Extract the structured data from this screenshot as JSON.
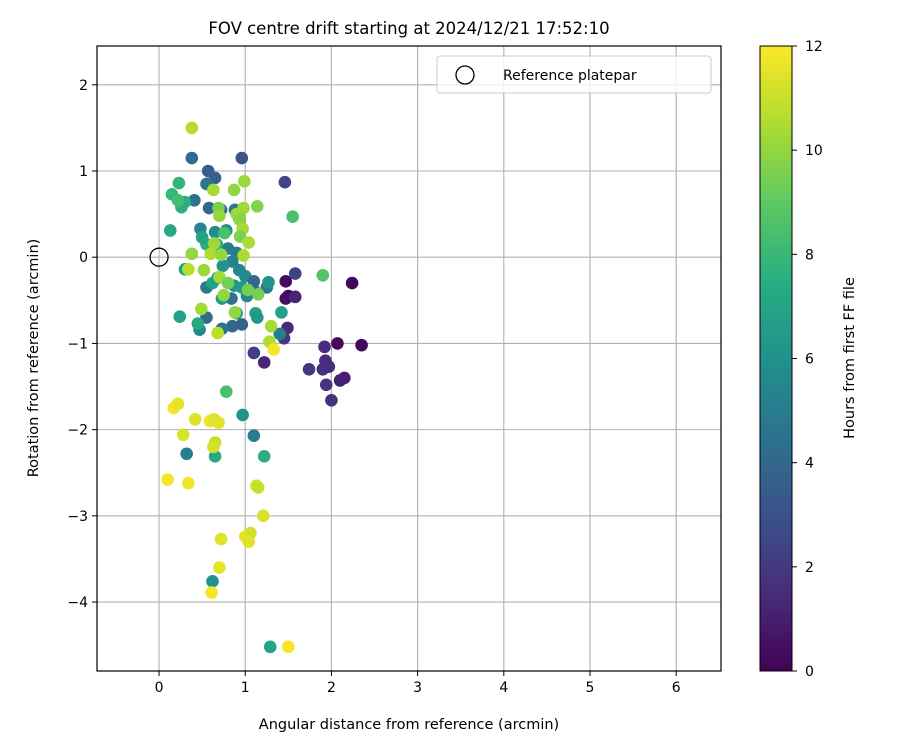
{
  "chart_data": {
    "type": "scatter",
    "title": "FOV centre drift starting at 2024/12/21 17:52:10",
    "xlabel": "Angular distance from reference (arcmin)",
    "ylabel": "Rotation from reference (arcmin)",
    "xlim": [
      -0.72,
      6.52
    ],
    "ylim": [
      -4.8,
      2.45
    ],
    "xticks": [
      0,
      1,
      2,
      3,
      4,
      5,
      6
    ],
    "yticks": [
      2,
      1,
      0,
      -1,
      -2,
      -3,
      -4
    ],
    "grid": true,
    "legend": {
      "position": "top-right",
      "entries": [
        "Reference platepar"
      ]
    },
    "reference_point": {
      "x": 0,
      "y": 0
    },
    "colorbar": {
      "label": "Hours from first FF file",
      "range": [
        0,
        12
      ],
      "ticks": [
        0,
        2,
        4,
        6,
        8,
        10,
        12
      ],
      "colormap": "viridis"
    },
    "points": [
      {
        "x": 1.5,
        "y": -0.45,
        "h": 0.1
      },
      {
        "x": 2.24,
        "y": -0.3,
        "h": 0.2
      },
      {
        "x": 2.07,
        "y": -1.0,
        "h": 0.3
      },
      {
        "x": 2.35,
        "y": -1.02,
        "h": 0.2
      },
      {
        "x": 1.47,
        "y": -0.28,
        "h": 0.3
      },
      {
        "x": 1.47,
        "y": -0.48,
        "h": 0.5
      },
      {
        "x": 2.15,
        "y": -1.4,
        "h": 1.0
      },
      {
        "x": 2.1,
        "y": -1.43,
        "h": 1.1
      },
      {
        "x": 1.58,
        "y": -0.46,
        "h": 1.2
      },
      {
        "x": 1.49,
        "y": -0.82,
        "h": 1.4
      },
      {
        "x": 1.22,
        "y": -1.22,
        "h": 1.3
      },
      {
        "x": 1.92,
        "y": -1.04,
        "h": 1.5
      },
      {
        "x": 1.93,
        "y": -1.2,
        "h": 1.5
      },
      {
        "x": 1.97,
        "y": -1.27,
        "h": 1.6
      },
      {
        "x": 1.9,
        "y": -1.3,
        "h": 1.6
      },
      {
        "x": 1.94,
        "y": -1.48,
        "h": 1.8
      },
      {
        "x": 2.0,
        "y": -1.66,
        "h": 1.7
      },
      {
        "x": 1.74,
        "y": -1.3,
        "h": 1.9
      },
      {
        "x": 1.45,
        "y": -0.94,
        "h": 2.0
      },
      {
        "x": 1.1,
        "y": -1.11,
        "h": 2.2
      },
      {
        "x": 1.58,
        "y": -0.19,
        "h": 2.4
      },
      {
        "x": 1.46,
        "y": 0.87,
        "h": 2.5
      },
      {
        "x": 0.96,
        "y": 1.15,
        "h": 3.0
      },
      {
        "x": 0.38,
        "y": 1.15,
        "h": 4.2
      },
      {
        "x": 0.57,
        "y": 1.0,
        "h": 3.5
      },
      {
        "x": 0.65,
        "y": 0.92,
        "h": 3.8
      },
      {
        "x": 0.55,
        "y": 0.85,
        "h": 4.5
      },
      {
        "x": 0.41,
        "y": 0.66,
        "h": 4.5
      },
      {
        "x": 0.58,
        "y": 0.57,
        "h": 4.0
      },
      {
        "x": 0.72,
        "y": 0.55,
        "h": 4.2
      },
      {
        "x": 0.88,
        "y": 0.55,
        "h": 4.8
      },
      {
        "x": 0.93,
        "y": 0.45,
        "h": 5.2
      },
      {
        "x": 0.48,
        "y": 0.33,
        "h": 5.5
      },
      {
        "x": 0.65,
        "y": 0.29,
        "h": 5.8
      },
      {
        "x": 0.78,
        "y": 0.31,
        "h": 5.5
      },
      {
        "x": 0.6,
        "y": 0.12,
        "h": 4.3
      },
      {
        "x": 0.8,
        "y": 0.1,
        "h": 5.0
      },
      {
        "x": 0.9,
        "y": 0.05,
        "h": 4.9
      },
      {
        "x": 0.85,
        "y": -0.05,
        "h": 5.3
      },
      {
        "x": 0.93,
        "y": -0.15,
        "h": 5.5
      },
      {
        "x": 0.74,
        "y": -0.1,
        "h": 6.2
      },
      {
        "x": 0.68,
        "y": -0.24,
        "h": 4.6
      },
      {
        "x": 0.55,
        "y": -0.35,
        "h": 4.9
      },
      {
        "x": 0.62,
        "y": -0.3,
        "h": 6.8
      },
      {
        "x": 0.87,
        "y": -0.33,
        "h": 6.3
      },
      {
        "x": 1.0,
        "y": -0.22,
        "h": 5.8
      },
      {
        "x": 0.96,
        "y": -0.35,
        "h": 6.5
      },
      {
        "x": 1.02,
        "y": -0.45,
        "h": 5.6
      },
      {
        "x": 0.84,
        "y": -0.48,
        "h": 4.4
      },
      {
        "x": 1.1,
        "y": -0.38,
        "h": 5.2
      },
      {
        "x": 1.25,
        "y": -0.35,
        "h": 4.8
      },
      {
        "x": 1.27,
        "y": -0.29,
        "h": 6.2
      },
      {
        "x": 1.1,
        "y": -0.28,
        "h": 4.0
      },
      {
        "x": 0.73,
        "y": -0.48,
        "h": 6.5
      },
      {
        "x": 0.85,
        "y": -0.8,
        "h": 4.0
      },
      {
        "x": 0.96,
        "y": -0.78,
        "h": 3.8
      },
      {
        "x": 0.55,
        "y": -0.7,
        "h": 4.2
      },
      {
        "x": 0.9,
        "y": -0.65,
        "h": 6.5
      },
      {
        "x": 1.12,
        "y": -0.65,
        "h": 6.9
      },
      {
        "x": 1.14,
        "y": -0.7,
        "h": 6.3
      },
      {
        "x": 1.42,
        "y": -0.64,
        "h": 6.8
      },
      {
        "x": 1.4,
        "y": -0.89,
        "h": 5.2
      },
      {
        "x": 0.47,
        "y": -0.84,
        "h": 5.5
      },
      {
        "x": 0.73,
        "y": -0.83,
        "h": 4.7
      },
      {
        "x": 0.24,
        "y": -0.69,
        "h": 6.8
      },
      {
        "x": 0.3,
        "y": -0.14,
        "h": 7.0
      },
      {
        "x": 0.13,
        "y": 0.31,
        "h": 7.2
      },
      {
        "x": 0.26,
        "y": 0.58,
        "h": 7.6
      },
      {
        "x": 0.3,
        "y": 0.64,
        "h": 7.5
      },
      {
        "x": 0.15,
        "y": 0.73,
        "h": 8.0
      },
      {
        "x": 0.23,
        "y": 0.86,
        "h": 7.8
      },
      {
        "x": 0.22,
        "y": 0.66,
        "h": 8.3
      },
      {
        "x": 0.55,
        "y": 0.15,
        "h": 7.5
      },
      {
        "x": 0.5,
        "y": 0.23,
        "h": 7.0
      },
      {
        "x": 0.67,
        "y": 0.15,
        "h": 7.3
      },
      {
        "x": 0.45,
        "y": -0.77,
        "h": 7.2
      },
      {
        "x": 0.76,
        "y": 0.28,
        "h": 8.5
      },
      {
        "x": 1.55,
        "y": 0.47,
        "h": 8.5
      },
      {
        "x": 1.9,
        "y": -0.21,
        "h": 8.7
      },
      {
        "x": 0.78,
        "y": -1.56,
        "h": 8.5
      },
      {
        "x": 0.97,
        "y": -1.83,
        "h": 6.2
      },
      {
        "x": 1.1,
        "y": -2.07,
        "h": 5.0
      },
      {
        "x": 0.32,
        "y": -2.28,
        "h": 5.2
      },
      {
        "x": 0.65,
        "y": -2.31,
        "h": 7.2
      },
      {
        "x": 1.22,
        "y": -2.31,
        "h": 7.5
      },
      {
        "x": 0.62,
        "y": -3.76,
        "h": 6.0
      },
      {
        "x": 1.29,
        "y": -4.52,
        "h": 7.0
      },
      {
        "x": 0.38,
        "y": 1.5,
        "h": 10.6
      },
      {
        "x": 0.99,
        "y": 0.88,
        "h": 10.2
      },
      {
        "x": 0.87,
        "y": 0.78,
        "h": 10.0
      },
      {
        "x": 0.63,
        "y": 0.78,
        "h": 10.4
      },
      {
        "x": 1.14,
        "y": 0.59,
        "h": 9.7
      },
      {
        "x": 0.98,
        "y": 0.57,
        "h": 10.3
      },
      {
        "x": 0.69,
        "y": 0.57,
        "h": 9.6
      },
      {
        "x": 0.7,
        "y": 0.48,
        "h": 10.1
      },
      {
        "x": 0.9,
        "y": 0.5,
        "h": 10.2
      },
      {
        "x": 0.94,
        "y": 0.43,
        "h": 9.9
      },
      {
        "x": 0.97,
        "y": 0.33,
        "h": 10.4
      },
      {
        "x": 0.94,
        "y": 0.24,
        "h": 9.6
      },
      {
        "x": 1.04,
        "y": 0.17,
        "h": 10.5
      },
      {
        "x": 0.64,
        "y": 0.16,
        "h": 10.2
      },
      {
        "x": 0.6,
        "y": 0.04,
        "h": 10.6
      },
      {
        "x": 0.72,
        "y": 0.03,
        "h": 10.0
      },
      {
        "x": 0.98,
        "y": 0.02,
        "h": 10.4
      },
      {
        "x": 0.52,
        "y": -0.15,
        "h": 10.2
      },
      {
        "x": 0.34,
        "y": -0.14,
        "h": 10.7
      },
      {
        "x": 0.38,
        "y": 0.04,
        "h": 10.0
      },
      {
        "x": 0.7,
        "y": -0.23,
        "h": 10.3
      },
      {
        "x": 1.03,
        "y": -0.38,
        "h": 9.5
      },
      {
        "x": 1.15,
        "y": -0.43,
        "h": 9.5
      },
      {
        "x": 0.8,
        "y": -0.3,
        "h": 9.4
      },
      {
        "x": 0.75,
        "y": -0.44,
        "h": 10.0
      },
      {
        "x": 0.49,
        "y": -0.6,
        "h": 10.3
      },
      {
        "x": 0.88,
        "y": -0.64,
        "h": 10.0
      },
      {
        "x": 1.3,
        "y": -0.8,
        "h": 10.4
      },
      {
        "x": 1.28,
        "y": -0.98,
        "h": 10.6
      },
      {
        "x": 0.68,
        "y": -0.88,
        "h": 10.8
      },
      {
        "x": 1.33,
        "y": -1.07,
        "h": 11.8
      },
      {
        "x": 0.69,
        "y": -1.92,
        "h": 11.5
      },
      {
        "x": 0.17,
        "y": -1.75,
        "h": 11.8
      },
      {
        "x": 0.22,
        "y": -1.7,
        "h": 11.6
      },
      {
        "x": 0.42,
        "y": -1.88,
        "h": 11.4
      },
      {
        "x": 0.59,
        "y": -1.9,
        "h": 11.7
      },
      {
        "x": 0.64,
        "y": -1.88,
        "h": 11.5
      },
      {
        "x": 0.65,
        "y": -2.15,
        "h": 11.0
      },
      {
        "x": 0.63,
        "y": -2.2,
        "h": 11.2
      },
      {
        "x": 0.28,
        "y": -2.06,
        "h": 11.3
      },
      {
        "x": 0.1,
        "y": -2.58,
        "h": 11.8
      },
      {
        "x": 0.34,
        "y": -2.62,
        "h": 11.7
      },
      {
        "x": 1.13,
        "y": -2.65,
        "h": 11.2
      },
      {
        "x": 1.15,
        "y": -2.67,
        "h": 11.0
      },
      {
        "x": 1.21,
        "y": -3.0,
        "h": 11.3
      },
      {
        "x": 0.72,
        "y": -3.27,
        "h": 11.4
      },
      {
        "x": 1.0,
        "y": -3.24,
        "h": 11.6
      },
      {
        "x": 1.06,
        "y": -3.2,
        "h": 11.2
      },
      {
        "x": 1.04,
        "y": -3.3,
        "h": 11.4
      },
      {
        "x": 0.7,
        "y": -3.6,
        "h": 11.5
      },
      {
        "x": 0.61,
        "y": -3.89,
        "h": 11.9
      },
      {
        "x": 1.5,
        "y": -4.52,
        "h": 11.9
      }
    ]
  }
}
